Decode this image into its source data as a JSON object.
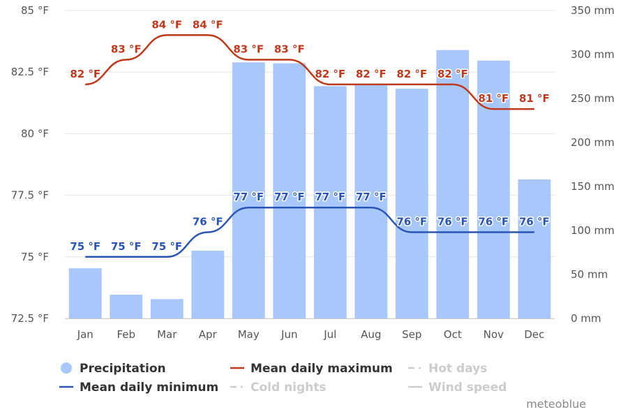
{
  "chart_data": {
    "type": "bar+line",
    "categories": [
      "Jan",
      "Feb",
      "Mar",
      "Apr",
      "May",
      "Jun",
      "Jul",
      "Aug",
      "Sep",
      "Oct",
      "Nov",
      "Dec"
    ],
    "y_left": {
      "min": 72.5,
      "max": 85,
      "ticks": [
        "72.5 °F",
        "75 °F",
        "77.5 °F",
        "80 °F",
        "82.5 °F",
        "85 °F"
      ]
    },
    "y_right": {
      "min": 0,
      "max": 350,
      "ticks": [
        "0 mm",
        "50 mm",
        "100 mm",
        "150 mm",
        "200 mm",
        "250 mm",
        "300 mm",
        "350 mm"
      ]
    },
    "grid": true,
    "series": [
      {
        "name": "Precipitation",
        "kind": "bar",
        "axis": "right",
        "unit": "mm",
        "color": "#a8c8fb",
        "values": [
          57,
          27,
          22,
          77,
          291,
          290,
          264,
          265,
          261,
          305,
          293,
          158
        ]
      },
      {
        "name": "Mean daily maximum",
        "kind": "line",
        "axis": "left",
        "unit": "°F",
        "color": "#c0391c",
        "values": [
          82,
          83,
          84,
          84,
          83,
          83,
          82,
          82,
          82,
          82,
          81,
          81
        ],
        "labels": [
          "82 °F",
          "83 °F",
          "84 °F",
          "84 °F",
          "83 °F",
          "83 °F",
          "82 °F",
          "82 °F",
          "82 °F",
          "82 °F",
          "81 °F",
          "81 °F"
        ]
      },
      {
        "name": "Mean daily minimum",
        "kind": "line",
        "axis": "left",
        "unit": "°F",
        "color": "#2a55b5",
        "values": [
          75,
          75,
          75,
          76,
          77,
          77,
          77,
          77,
          76,
          76,
          76,
          76
        ],
        "labels": [
          "75 °F",
          "75 °F",
          "75 °F",
          "76 °F",
          "77 °F",
          "77 °F",
          "77 °F",
          "77 °F",
          "76 °F",
          "76 °F",
          "76 °F",
          "76 °F"
        ]
      }
    ],
    "legend": {
      "placement": "bottom",
      "items": [
        {
          "label": "Precipitation",
          "symbol": "circle",
          "color": "#a8c8fb",
          "active": true
        },
        {
          "label": "Mean daily maximum",
          "symbol": "line",
          "color": "#c0391c",
          "active": true
        },
        {
          "label": "Hot days",
          "symbol": "dash",
          "color": "#cccccc",
          "active": false
        },
        {
          "label": "Mean daily minimum",
          "symbol": "line",
          "color": "#2a55b5",
          "active": true
        },
        {
          "label": "Cold nights",
          "symbol": "dash",
          "color": "#cccccc",
          "active": false
        },
        {
          "label": "Wind speed",
          "symbol": "line",
          "color": "#cccccc",
          "active": false
        }
      ]
    },
    "credit": "meteoblue"
  }
}
